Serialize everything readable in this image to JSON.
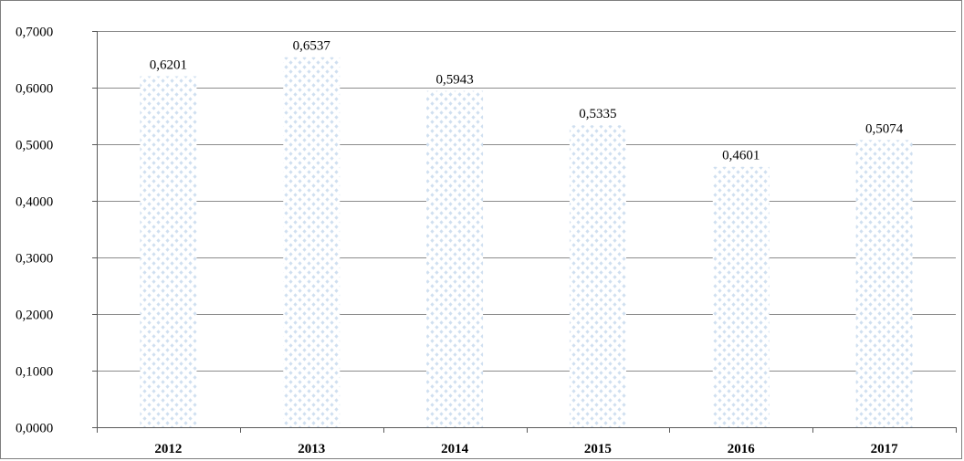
{
  "chart_data": {
    "type": "bar",
    "categories": [
      "2012",
      "2013",
      "2014",
      "2015",
      "2016",
      "2017"
    ],
    "values": [
      0.6201,
      0.6537,
      0.5943,
      0.5335,
      0.4601,
      0.5074
    ],
    "data_labels": [
      "0,6201",
      "0,6537",
      "0,5943",
      "0,5335",
      "0,4601",
      "0,5074"
    ],
    "y_tick_labels": [
      "0,0000",
      "0,1000",
      "0,2000",
      "0,3000",
      "0,4000",
      "0,5000",
      "0,6000",
      "0,7000"
    ],
    "y_ticks": [
      0,
      0.1,
      0.2,
      0.3,
      0.4,
      0.5,
      0.6,
      0.7
    ],
    "ylim": [
      0,
      0.7
    ],
    "grid": true,
    "legend": "none",
    "bar_pattern": "dotted-diamond",
    "colors": {
      "bar_dot": "#cfdff0",
      "grid": "#8c8c8c",
      "axis": "#5a5a5a"
    }
  }
}
